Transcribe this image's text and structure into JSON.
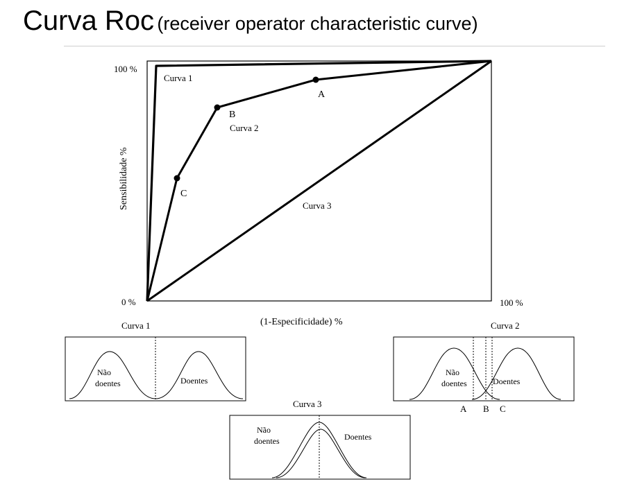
{
  "slide": {
    "title_main": "Curva Roc",
    "title_sub": "(receiver operator characteristic curve)"
  },
  "roc": {
    "y_top_label": "100 %",
    "y_zero_label": "0 %",
    "x_right_label": "100 %",
    "y_axis_title": "Sensibilidade %",
    "x_axis_title": "(1-Especificidade) %",
    "curve1_label": "Curva 1",
    "curve2_label": "Curva 2",
    "curve3_label": "Curva 3",
    "point_a": "A",
    "point_b": "B",
    "point_c": "C"
  },
  "panels": {
    "curve1": {
      "title": "Curva 1",
      "nao_line1": "Não",
      "nao_line2": "doentes",
      "doentes": "Doentes"
    },
    "curve2": {
      "title": "Curva 2",
      "nao_line1": "Não",
      "nao_line2": "doentes",
      "doentes": "Doentes",
      "cut_a": "A",
      "cut_b": "B",
      "cut_c": "C"
    },
    "curve3": {
      "title": "Curva 3",
      "nao_line1": "Não",
      "nao_line2": "doentes",
      "doentes": "Doentes"
    }
  }
}
